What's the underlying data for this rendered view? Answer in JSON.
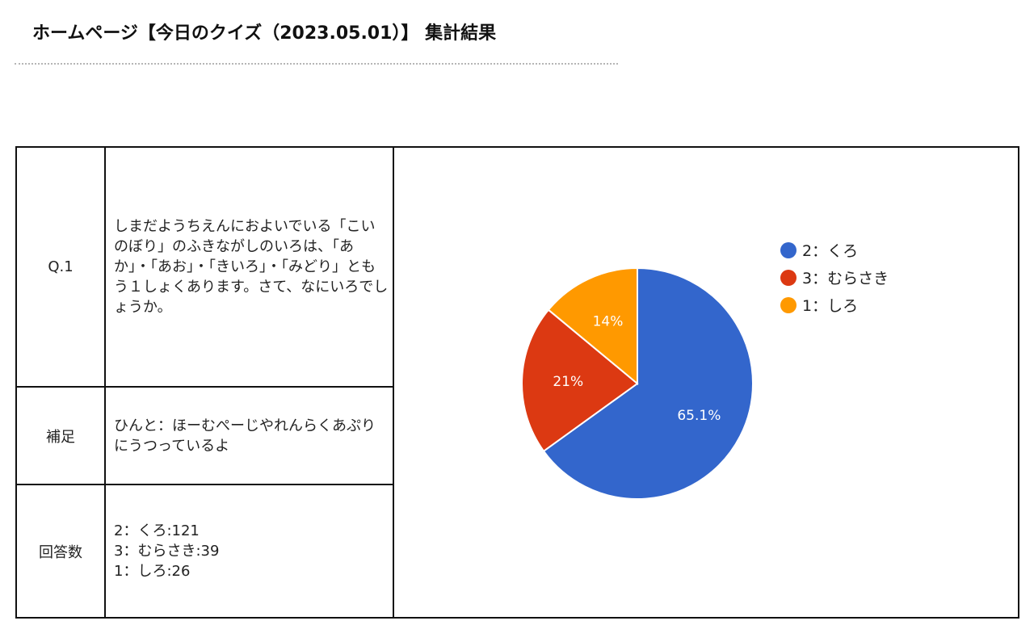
{
  "header": {
    "title": "ホームページ【今日のクイズ（2023.05.01）】 集計結果"
  },
  "table": {
    "question": {
      "label": "Q.1",
      "text": "しまだようちえんにおよいでいる「こいのぼり」のふきながしのいろは、「あか」・「あお」・「きいろ」・「みどり」ともう１しょくあります。さて、なにいろでしょうか。"
    },
    "hint": {
      "label": "補足",
      "text": "ひんと：ほーむぺーじやれんらくあぷりにうつっているよ"
    },
    "answers": {
      "label": "回答数",
      "items": [
        "2：くろ:121",
        "3：むらさき:39",
        "1：しろ:26"
      ]
    }
  },
  "chart_data": {
    "type": "pie",
    "categories": [
      "2：くろ",
      "3：むらさき",
      "1：しろ"
    ],
    "values": [
      121,
      39,
      26
    ],
    "percent_labels": [
      "65.1%",
      "21%",
      "14%"
    ],
    "colors": [
      "#3366cc",
      "#dc3912",
      "#ff9900"
    ],
    "legend_position": "right",
    "title": ""
  }
}
